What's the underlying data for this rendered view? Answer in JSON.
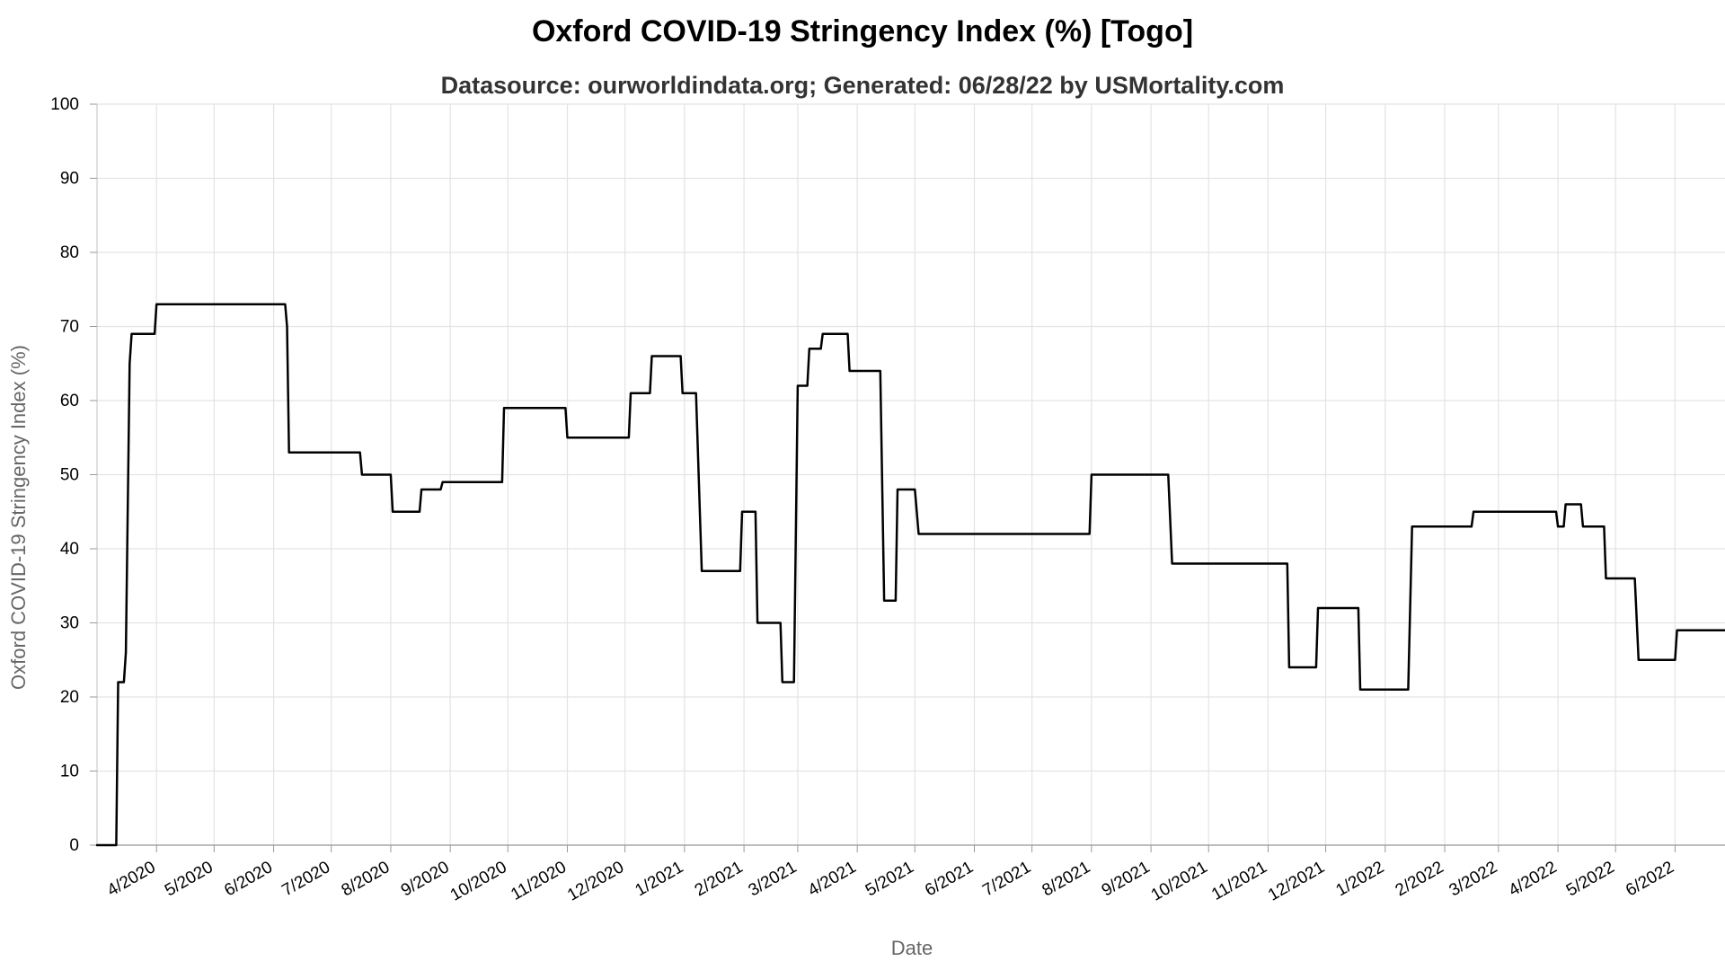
{
  "chart_data": {
    "type": "line",
    "title": "Oxford COVID-19 Stringency Index (%) [Togo]",
    "subtitle": "Datasource: ourworldindata.org; Generated: 06/28/22 by USMortality.com",
    "xlabel": "Date",
    "ylabel": "Oxford COVID-19 Stringency Index (%)",
    "ylim": [
      0,
      100
    ],
    "yticks": [
      0,
      10,
      20,
      30,
      40,
      50,
      60,
      70,
      80,
      90,
      100
    ],
    "xlim": [
      "2020-03-01",
      "2022-06-27"
    ],
    "xtick_dates": [
      "2020-04-01",
      "2020-05-01",
      "2020-06-01",
      "2020-07-01",
      "2020-08-01",
      "2020-09-01",
      "2020-10-01",
      "2020-11-01",
      "2020-12-01",
      "2021-01-01",
      "2021-02-01",
      "2021-03-01",
      "2021-04-01",
      "2021-05-01",
      "2021-06-01",
      "2021-07-01",
      "2021-08-01",
      "2021-09-01",
      "2021-10-01",
      "2021-11-01",
      "2021-12-01",
      "2022-01-01",
      "2022-02-01",
      "2022-03-01",
      "2022-04-01",
      "2022-05-01",
      "2022-06-01"
    ],
    "xtick_labels": [
      "4/2020",
      "5/2020",
      "6/2020",
      "7/2020",
      "8/2020",
      "9/2020",
      "10/2020",
      "11/2020",
      "12/2020",
      "1/2021",
      "2/2021",
      "3/2021",
      "4/2021",
      "5/2021",
      "6/2021",
      "7/2021",
      "8/2021",
      "9/2021",
      "10/2021",
      "11/2021",
      "12/2021",
      "1/2022",
      "2/2022",
      "3/2022",
      "4/2022",
      "5/2022",
      "6/2022"
    ],
    "grid": true,
    "line_color": "#000000",
    "series": [
      {
        "points": [
          [
            "2020-03-01",
            0
          ],
          [
            "2020-03-11",
            0
          ],
          [
            "2020-03-12",
            22
          ],
          [
            "2020-03-15",
            22
          ],
          [
            "2020-03-16",
            26
          ],
          [
            "2020-03-18",
            65
          ],
          [
            "2020-03-19",
            69
          ],
          [
            "2020-03-31",
            69
          ],
          [
            "2020-04-01",
            73
          ],
          [
            "2020-06-07",
            73
          ],
          [
            "2020-06-08",
            70
          ],
          [
            "2020-06-09",
            53
          ],
          [
            "2020-07-16",
            53
          ],
          [
            "2020-07-17",
            50
          ],
          [
            "2020-08-01",
            50
          ],
          [
            "2020-08-02",
            45
          ],
          [
            "2020-08-16",
            45
          ],
          [
            "2020-08-17",
            48
          ],
          [
            "2020-08-27",
            48
          ],
          [
            "2020-08-28",
            49
          ],
          [
            "2020-09-28",
            49
          ],
          [
            "2020-09-29",
            59
          ],
          [
            "2020-10-31",
            59
          ],
          [
            "2020-11-01",
            55
          ],
          [
            "2020-12-03",
            55
          ],
          [
            "2020-12-04",
            61
          ],
          [
            "2020-12-14",
            61
          ],
          [
            "2020-12-15",
            66
          ],
          [
            "2020-12-30",
            66
          ],
          [
            "2020-12-31",
            61
          ],
          [
            "2021-01-07",
            61
          ],
          [
            "2021-01-10",
            37
          ],
          [
            "2021-01-30",
            37
          ],
          [
            "2021-01-31",
            45
          ],
          [
            "2021-02-07",
            45
          ],
          [
            "2021-02-08",
            30
          ],
          [
            "2021-02-20",
            30
          ],
          [
            "2021-02-21",
            22
          ],
          [
            "2021-02-27",
            22
          ],
          [
            "2021-03-01",
            62
          ],
          [
            "2021-03-06",
            62
          ],
          [
            "2021-03-07",
            67
          ],
          [
            "2021-03-13",
            67
          ],
          [
            "2021-03-14",
            69
          ],
          [
            "2021-03-27",
            69
          ],
          [
            "2021-03-28",
            64
          ],
          [
            "2021-04-13",
            64
          ],
          [
            "2021-04-15",
            33
          ],
          [
            "2021-04-21",
            33
          ],
          [
            "2021-04-22",
            48
          ],
          [
            "2021-05-01",
            48
          ],
          [
            "2021-05-03",
            42
          ],
          [
            "2021-07-31",
            42
          ],
          [
            "2021-08-01",
            50
          ],
          [
            "2021-09-10",
            50
          ],
          [
            "2021-09-12",
            38
          ],
          [
            "2021-11-11",
            38
          ],
          [
            "2021-11-12",
            24
          ],
          [
            "2021-11-26",
            24
          ],
          [
            "2021-11-27",
            32
          ],
          [
            "2021-12-18",
            32
          ],
          [
            "2021-12-19",
            21
          ],
          [
            "2022-01-13",
            21
          ],
          [
            "2022-01-15",
            43
          ],
          [
            "2022-02-15",
            43
          ],
          [
            "2022-02-16",
            45
          ],
          [
            "2022-03-31",
            45
          ],
          [
            "2022-04-01",
            43
          ],
          [
            "2022-04-04",
            43
          ],
          [
            "2022-04-05",
            46
          ],
          [
            "2022-04-13",
            46
          ],
          [
            "2022-04-14",
            43
          ],
          [
            "2022-04-25",
            43
          ],
          [
            "2022-04-26",
            36
          ],
          [
            "2022-05-11",
            36
          ],
          [
            "2022-05-13",
            25
          ],
          [
            "2022-06-01",
            25
          ],
          [
            "2022-06-02",
            29
          ],
          [
            "2022-06-27",
            29
          ]
        ]
      }
    ]
  }
}
